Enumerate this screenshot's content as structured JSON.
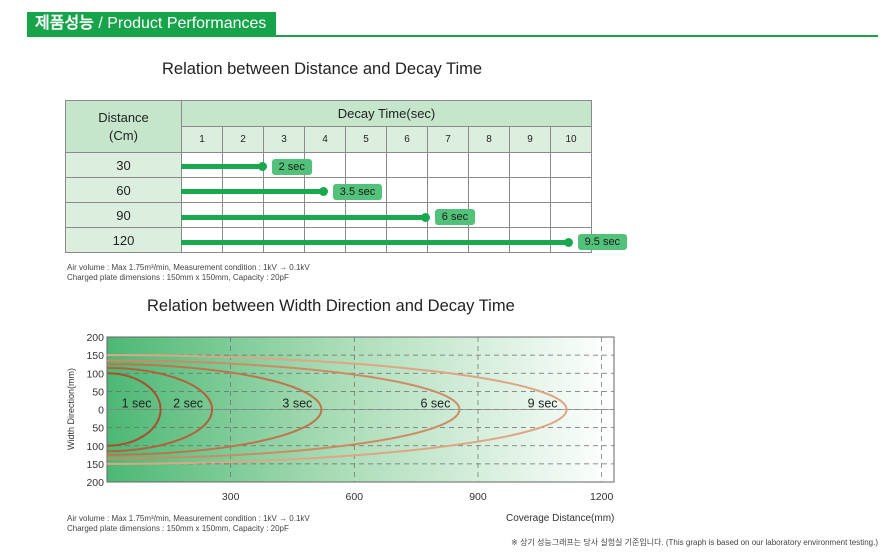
{
  "header": {
    "title_ko": "제품성능",
    "title_en": " / Product Performances",
    "accent": "#16a34a"
  },
  "footnote": "※ 상기 성능그래프는 당사 실험실 기준입니다. (This graph is based on our laboratory environment testing.)",
  "chart_data": [
    {
      "type": "table",
      "title": "Relation between Distance and Decay Time",
      "row_header": [
        "Distance",
        "(Cm)"
      ],
      "column_header": "Decay Time(sec)",
      "ticks": [
        "1",
        "2",
        "3",
        "4",
        "5",
        "6",
        "7",
        "8",
        "9",
        "10"
      ],
      "rows": [
        {
          "distance": "30",
          "decay": 2,
          "label": "2 sec"
        },
        {
          "distance": "60",
          "decay": 3.5,
          "label": "3.5 sec"
        },
        {
          "distance": "90",
          "decay": 6,
          "label": "6 sec"
        },
        {
          "distance": "120",
          "decay": 9.5,
          "label": "9.5 sec"
        }
      ],
      "note": [
        "Air volume : Max 1.75m³/min, Measurement condition : 1kV → 0.1kV",
        "Charged plate dimensions : 150mm x 150mm,  Capacity : 20pF"
      ],
      "bar_color": "#1aa84f",
      "label_color": "#52c27b"
    },
    {
      "type": "line",
      "title": "Relation between Width Direction and Decay Time",
      "xlabel": "Coverage Distance(mm)",
      "ylabel": "Width Direction(mm)",
      "xticks": [
        "300",
        "600",
        "900",
        "1200"
      ],
      "xlim": [
        0,
        1230
      ],
      "yticks": [
        "200",
        "150",
        "100",
        "50",
        "0",
        "50",
        "100",
        "150",
        "200"
      ],
      "ylim": [
        -200,
        200
      ],
      "grid": true,
      "series": [
        {
          "name": "1 sec",
          "reach": 130,
          "half_width": 100,
          "color": "#a8502f"
        },
        {
          "name": "2 sec",
          "reach": 255,
          "half_width": 115,
          "color": "#b4603c"
        },
        {
          "name": "3 sec",
          "reach": 520,
          "half_width": 125,
          "color": "#c0734c"
        },
        {
          "name": "6 sec",
          "reach": 855,
          "half_width": 135,
          "color": "#cf8a64"
        },
        {
          "name": "9 sec",
          "reach": 1115,
          "half_width": 150,
          "color": "#dfa585"
        }
      ],
      "note": [
        "Air volume : Max 1.75m³/min, Measurement condition : 1kV → 0.1kV",
        "Charged plate dimensions : 150mm x 150mm, Capacity : 20pF"
      ],
      "fill_color": "#4cb874"
    }
  ]
}
